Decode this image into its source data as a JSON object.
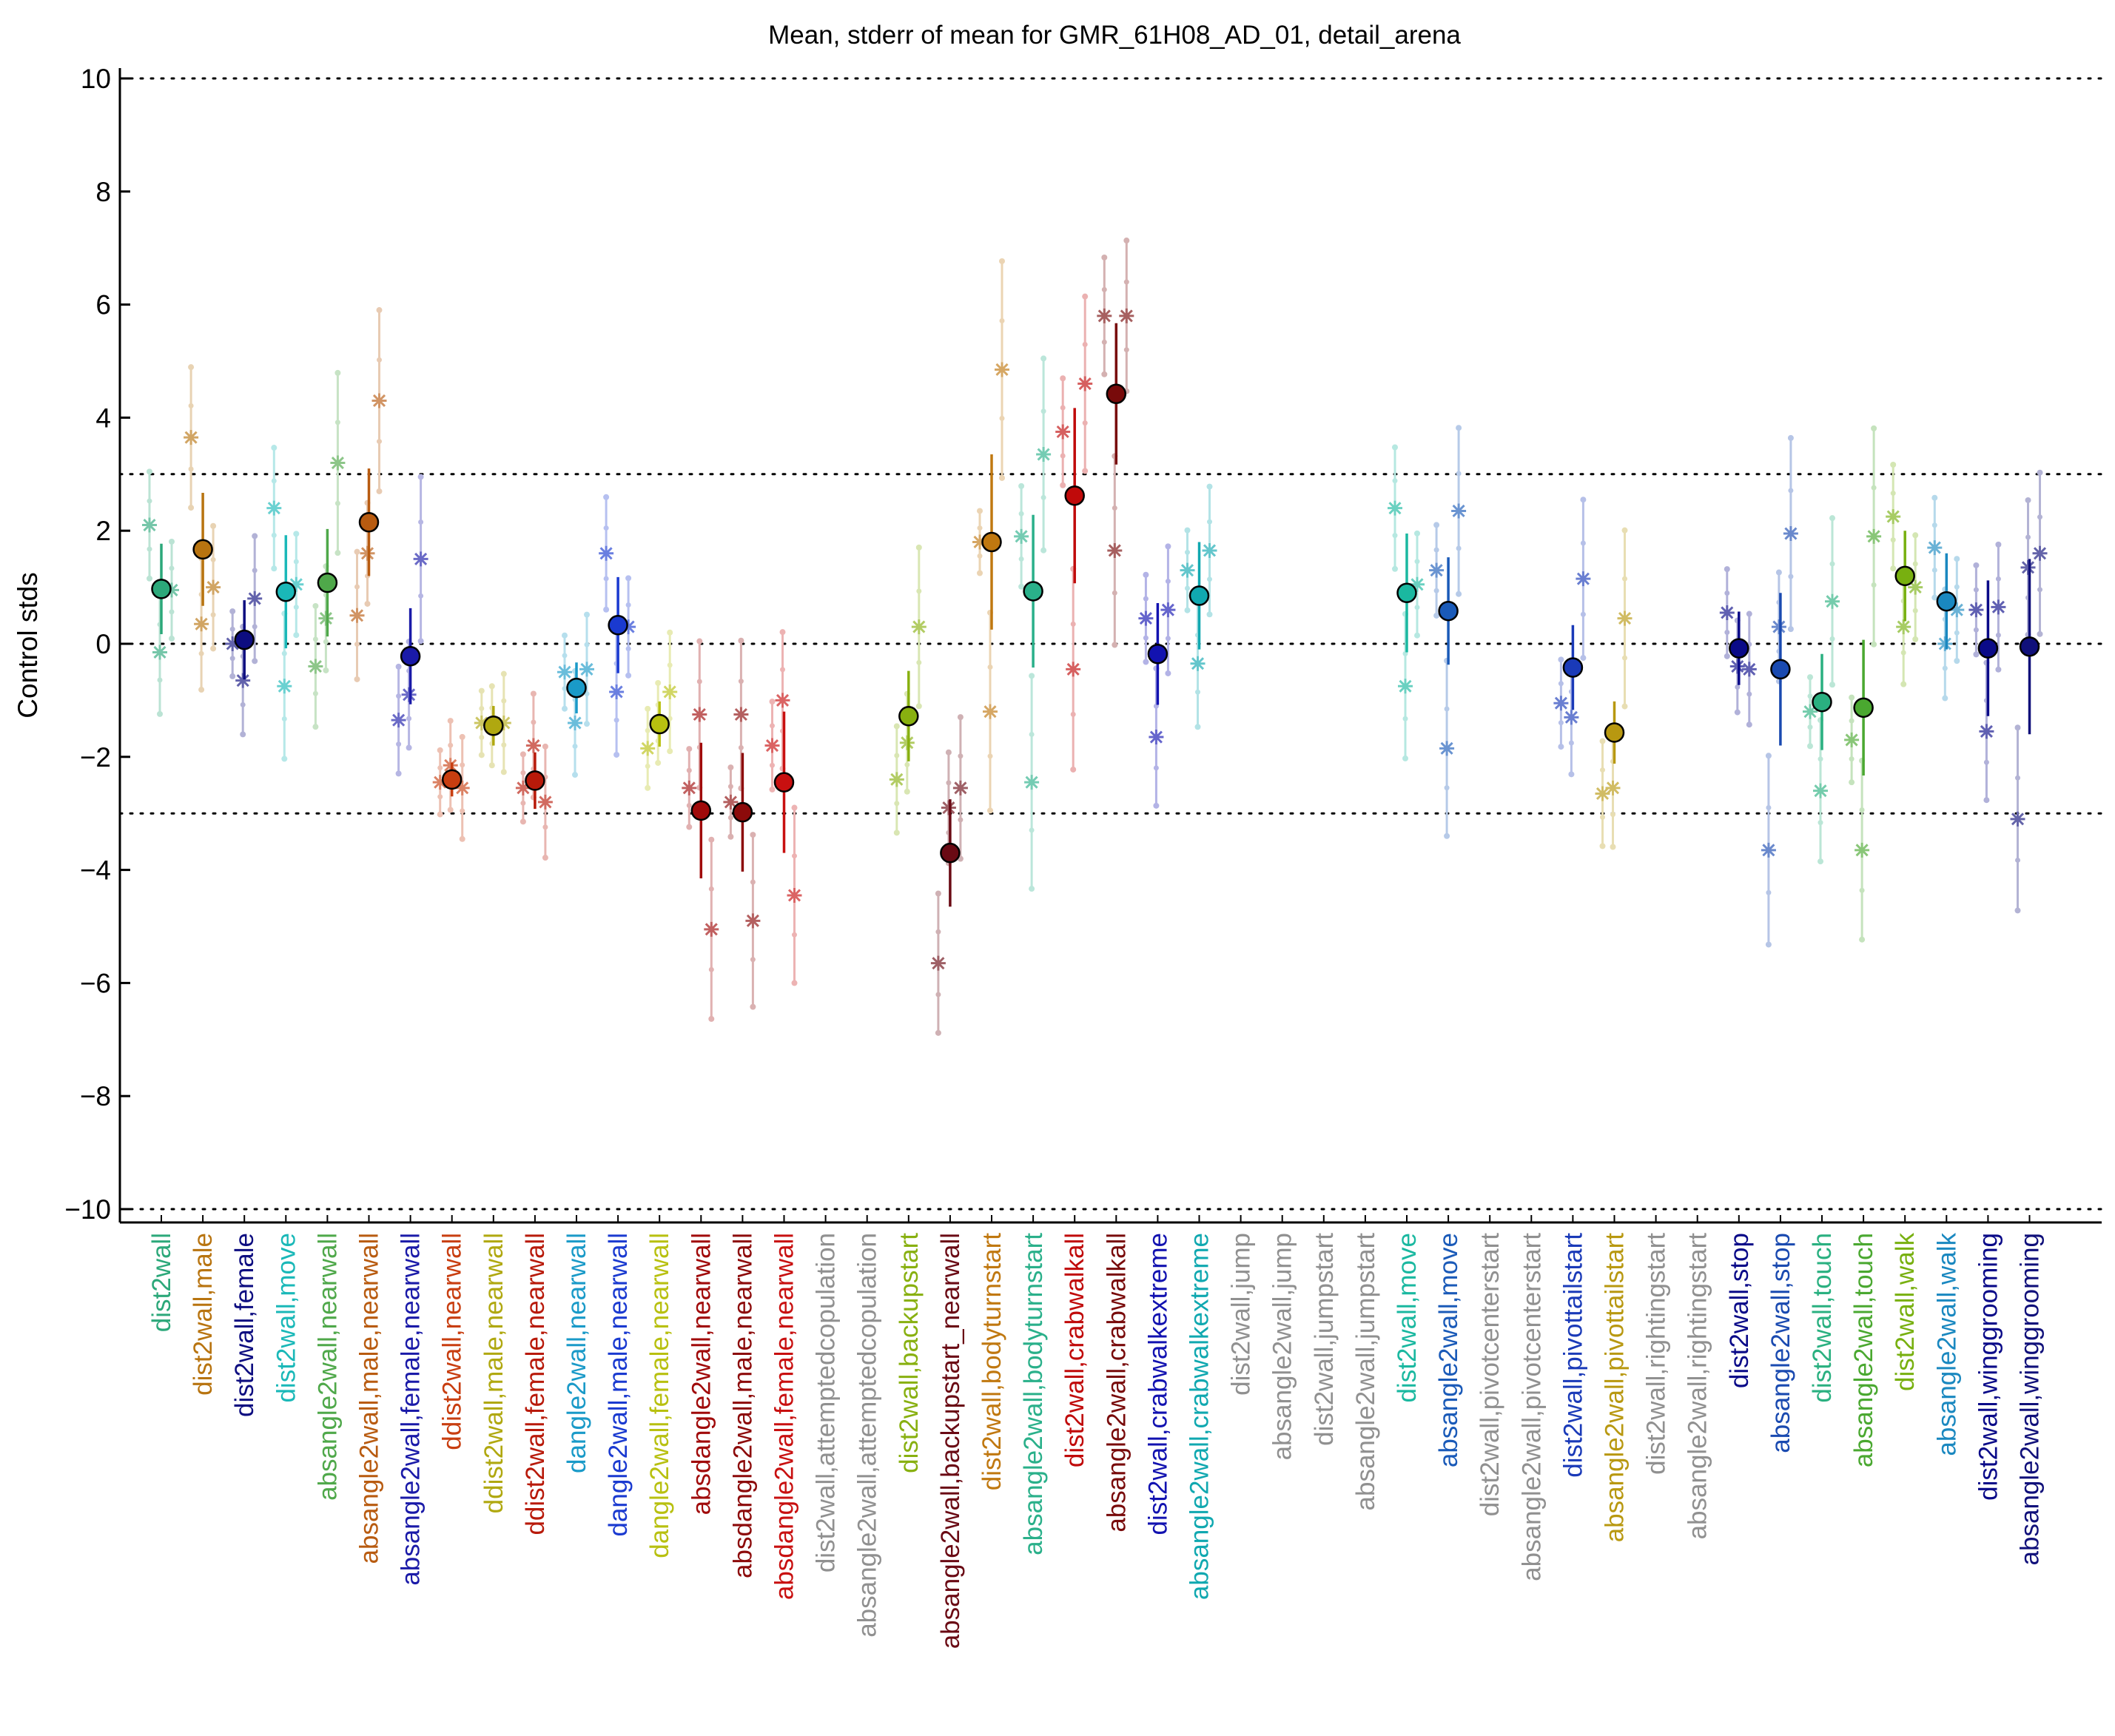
{
  "chart_data": {
    "type": "scatter",
    "title": "Mean, stderr of mean for GMR_61H08_AD_01, detail_arena",
    "ylabel": "Control stds",
    "xlabel": "",
    "ylim": [
      -10.2,
      10.2
    ],
    "yticks": [
      -10,
      -8,
      -6,
      -4,
      -2,
      0,
      2,
      4,
      6,
      8,
      10
    ],
    "ytick_labels": [
      "−10",
      "−8",
      "−6",
      "−4",
      "−2",
      "0",
      "2",
      "4",
      "6",
      "8",
      "10"
    ],
    "reference_lines": [
      -10,
      -3,
      0,
      3,
      10
    ],
    "grid": false,
    "markers": "circle = mean, vertical line = stderr of mean, asterisk = individual experiment",
    "stats": [
      {
        "label": "dist2wall",
        "color": "#2ca87a",
        "mean": 0.97,
        "err": 0.8,
        "points": [
          2.1,
          -0.15,
          0.95
        ]
      },
      {
        "label": "dist2wall,male",
        "color": "#b87410",
        "mean": 1.67,
        "err": 1.0,
        "points": [
          3.65,
          0.35,
          1.0
        ]
      },
      {
        "label": "dist2wall,female",
        "color": "#0d0d80",
        "mean": 0.07,
        "err": 0.7,
        "points": [
          0.0,
          -0.65,
          0.8
        ]
      },
      {
        "label": "dist2wall,move",
        "color": "#1ab8b8",
        "mean": 0.92,
        "err": 1.0,
        "points": [
          2.4,
          -0.75,
          1.05
        ]
      },
      {
        "label": "absangle2wall,nearwall",
        "color": "#4fa84a",
        "mean": 1.08,
        "err": 0.95,
        "points": [
          -0.4,
          0.45,
          3.2
        ]
      },
      {
        "label": "absangle2wall,male,nearwall",
        "color": "#b85b10",
        "mean": 2.15,
        "err": 0.95,
        "points": [
          0.5,
          1.6,
          4.3
        ]
      },
      {
        "label": "absangle2wall,female,nearwall",
        "color": "#1a1aa8",
        "mean": -0.22,
        "err": 0.85,
        "points": [
          -1.35,
          -0.9,
          1.5
        ]
      },
      {
        "label": "ddist2wall,nearwall",
        "color": "#c83e10",
        "mean": -2.4,
        "err": 0.3,
        "points": [
          -2.45,
          -2.15,
          -2.55
        ]
      },
      {
        "label": "ddist2wall,male,nearwall",
        "color": "#b0a810",
        "mean": -1.45,
        "err": 0.35,
        "points": [
          -1.4,
          -1.45,
          -1.4
        ]
      },
      {
        "label": "ddist2wall,female,nearwall",
        "color": "#b81a0a",
        "mean": -2.42,
        "err": 0.5,
        "points": [
          -2.55,
          -1.8,
          -2.8
        ]
      },
      {
        "label": "dangle2wall,nearwall",
        "color": "#1a9ac8",
        "mean": -0.78,
        "err": 0.45,
        "points": [
          -0.5,
          -1.4,
          -0.45
        ]
      },
      {
        "label": "dangle2wall,male,nearwall",
        "color": "#1a3ad0",
        "mean": 0.33,
        "err": 0.85,
        "points": [
          1.6,
          -0.85,
          0.3
        ]
      },
      {
        "label": "dangle2wall,female,nearwall",
        "color": "#b8c010",
        "mean": -1.42,
        "err": 0.4,
        "points": [
          -1.85,
          -1.4,
          -0.85
        ]
      },
      {
        "label": "absdangle2wall,nearwall",
        "color": "#a00a0a",
        "mean": -2.95,
        "err": 1.2,
        "points": [
          -2.55,
          -1.25,
          -5.05
        ]
      },
      {
        "label": "absdangle2wall,male,nearwall",
        "color": "#8c0a0a",
        "mean": -2.98,
        "err": 1.05,
        "points": [
          -2.8,
          -1.25,
          -4.9
        ]
      },
      {
        "label": "absdangle2wall,female,nearwall",
        "color": "#c81010",
        "mean": -2.45,
        "err": 1.25,
        "points": [
          -1.8,
          -1.0,
          -4.45
        ]
      },
      {
        "label": "dist2wall,attemptedcopulation",
        "color": "#909090",
        "mean": null,
        "err": null,
        "points": []
      },
      {
        "label": "absangle2wall,attemptedcopulation",
        "color": "#909090",
        "mean": null,
        "err": null,
        "points": []
      },
      {
        "label": "dist2wall,backupstart",
        "color": "#88b010",
        "mean": -1.28,
        "err": 0.8,
        "points": [
          -2.4,
          -1.75,
          0.3
        ]
      },
      {
        "label": "absangle2wall,backupstart_nearwall",
        "color": "#6a0a14",
        "mean": -3.7,
        "err": 0.95,
        "points": [
          -5.65,
          -2.9,
          -2.55
        ]
      },
      {
        "label": "dist2wall,bodyturnstart",
        "color": "#c07810",
        "mean": 1.8,
        "err": 1.55,
        "points": [
          1.8,
          -1.2,
          4.85
        ]
      },
      {
        "label": "absangle2wall,bodyturnstart",
        "color": "#2ab08a",
        "mean": 0.93,
        "err": 1.35,
        "points": [
          1.9,
          -2.45,
          3.35
        ]
      },
      {
        "label": "dist2wall,crabwalkall",
        "color": "#c00a0a",
        "mean": 2.62,
        "err": 1.55,
        "points": [
          3.75,
          -0.45,
          4.6
        ]
      },
      {
        "label": "absangle2wall,crabwalkall",
        "color": "#780a0a",
        "mean": 4.42,
        "err": 1.25,
        "points": [
          5.8,
          1.65,
          5.8
        ]
      },
      {
        "label": "dist2wall,crabwalkextreme",
        "color": "#1212b0",
        "mean": -0.18,
        "err": 0.9,
        "points": [
          0.45,
          -1.65,
          0.6
        ]
      },
      {
        "label": "absangle2wall,crabwalkextreme",
        "color": "#10a8b0",
        "mean": 0.85,
        "err": 0.95,
        "points": [
          1.3,
          -0.35,
          1.65
        ]
      },
      {
        "label": "dist2wall,jump",
        "color": "#909090",
        "mean": null,
        "err": null,
        "points": []
      },
      {
        "label": "absangle2wall,jump",
        "color": "#909090",
        "mean": null,
        "err": null,
        "points": []
      },
      {
        "label": "dist2wall,jumpstart",
        "color": "#909090",
        "mean": null,
        "err": null,
        "points": []
      },
      {
        "label": "absangle2wall,jumpstart",
        "color": "#909090",
        "mean": null,
        "err": null,
        "points": []
      },
      {
        "label": "dist2wall,move",
        "color": "#1ab8a0",
        "mean": 0.9,
        "err": 1.05,
        "points": [
          2.4,
          -0.75,
          1.05
        ]
      },
      {
        "label": "absangle2wall,move",
        "color": "#1a5ab8",
        "mean": 0.58,
        "err": 0.95,
        "points": [
          1.3,
          -1.85,
          2.35
        ]
      },
      {
        "label": "dist2wall,pivotcenterstart",
        "color": "#909090",
        "mean": null,
        "err": null,
        "points": []
      },
      {
        "label": "absangle2wall,pivotcenterstart",
        "color": "#909090",
        "mean": null,
        "err": null,
        "points": []
      },
      {
        "label": "dist2wall,pivottailstart",
        "color": "#1a3ab8",
        "mean": -0.42,
        "err": 0.75,
        "points": [
          -1.05,
          -1.3,
          1.15
        ]
      },
      {
        "label": "absangle2wall,pivottailstart",
        "color": "#b89810",
        "mean": -1.57,
        "err": 0.55,
        "points": [
          -2.65,
          -2.55,
          0.45
        ]
      },
      {
        "label": "dist2wall,rightingstart",
        "color": "#909090",
        "mean": null,
        "err": null,
        "points": []
      },
      {
        "label": "absangle2wall,rightingstart",
        "color": "#909090",
        "mean": null,
        "err": null,
        "points": []
      },
      {
        "label": "dist2wall,stop",
        "color": "#0a0a88",
        "mean": -0.08,
        "err": 0.65,
        "points": [
          0.55,
          -0.4,
          -0.45
        ]
      },
      {
        "label": "absangle2wall,stop",
        "color": "#1a4ab0",
        "mean": -0.45,
        "err": 1.35,
        "points": [
          -3.65,
          0.3,
          1.95
        ]
      },
      {
        "label": "dist2wall,touch",
        "color": "#2ab080",
        "mean": -1.03,
        "err": 0.85,
        "points": [
          -1.2,
          -2.6,
          0.75
        ]
      },
      {
        "label": "absangle2wall,touch",
        "color": "#4aa830",
        "mean": -1.13,
        "err": 1.2,
        "points": [
          -1.7,
          -3.65,
          1.9
        ]
      },
      {
        "label": "dist2wall,walk",
        "color": "#78b010",
        "mean": 1.2,
        "err": 0.8,
        "points": [
          2.25,
          0.3,
          1.0
        ]
      },
      {
        "label": "absangle2wall,walk",
        "color": "#1a88c0",
        "mean": 0.75,
        "err": 0.85,
        "points": [
          1.7,
          0.0,
          0.6
        ]
      },
      {
        "label": "dist2wall,winggrooming",
        "color": "#0a0a88",
        "mean": -0.08,
        "err": 1.2,
        "points": [
          0.6,
          -1.55,
          0.65
        ]
      },
      {
        "label": "absangle2wall,winggrooming",
        "color": "#10107a",
        "mean": -0.05,
        "err": 1.55,
        "points": [
          -3.1,
          1.35,
          1.6
        ]
      }
    ]
  }
}
